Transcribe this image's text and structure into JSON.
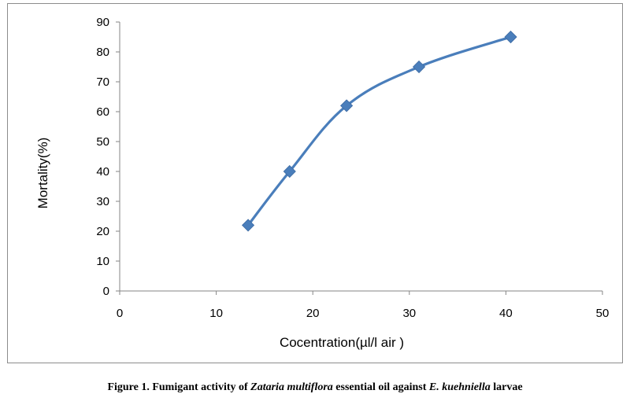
{
  "chart_data": {
    "type": "line",
    "x": [
      13.3,
      17.6,
      23.5,
      31.0,
      40.5
    ],
    "series": [
      {
        "values": [
          22,
          40,
          62,
          75,
          85
        ]
      }
    ],
    "xlabel": "Cocentration(µl/l air )",
    "ylabel": "Mortality(%)",
    "xlim": [
      0,
      50
    ],
    "ylim": [
      0,
      90
    ],
    "xticks": [
      0,
      10,
      20,
      30,
      40,
      50
    ],
    "yticks": [
      0,
      10,
      20,
      30,
      40,
      50,
      60,
      70,
      80,
      90
    ],
    "grid": false,
    "marker": "diamond",
    "line_smooth": true,
    "color": "#4a7ebb"
  },
  "caption": {
    "prefix": "Figure 1. Fumigant activity of ",
    "species": "Zataria multiflora",
    "middle": " essential oil against ",
    "pest": "E. kuehniella",
    "suffix": " larvae"
  }
}
